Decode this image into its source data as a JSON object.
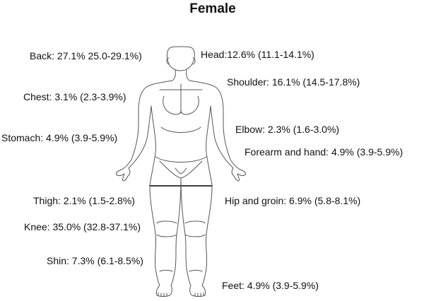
{
  "title": "Female",
  "labels": {
    "back": "Back: 27.1% 25.0-29.1%)",
    "head": "Head:12.6% (11.1-14.1%)",
    "shoulder": "Shoulder: 16.1% (14.5-17.8%)",
    "chest": "Chest: 3.1% (2.3-3.9%)",
    "elbow": "Elbow: 2.3% (1.6-3.0%)",
    "stomach": "Stomach: 4.9% (3.9-5.9%)",
    "forearm_hand": "Forearm and hand: 4.9% (3.9-5.9%)",
    "thigh": "Thigh: 2.1% (1.5-2.8%)",
    "hip_groin": "Hip and groin: 6.9% (5.8-8.1%)",
    "knee": "Knee: 35.0% (32.8-37.1%)",
    "shin": "Shin: 7.3% (6.1-8.5%)",
    "feet": "Feet: 4.9% (3.9-5.9%)"
  },
  "colors": {
    "outline": "#555555",
    "text": "#111111",
    "background": "#ffffff"
  }
}
